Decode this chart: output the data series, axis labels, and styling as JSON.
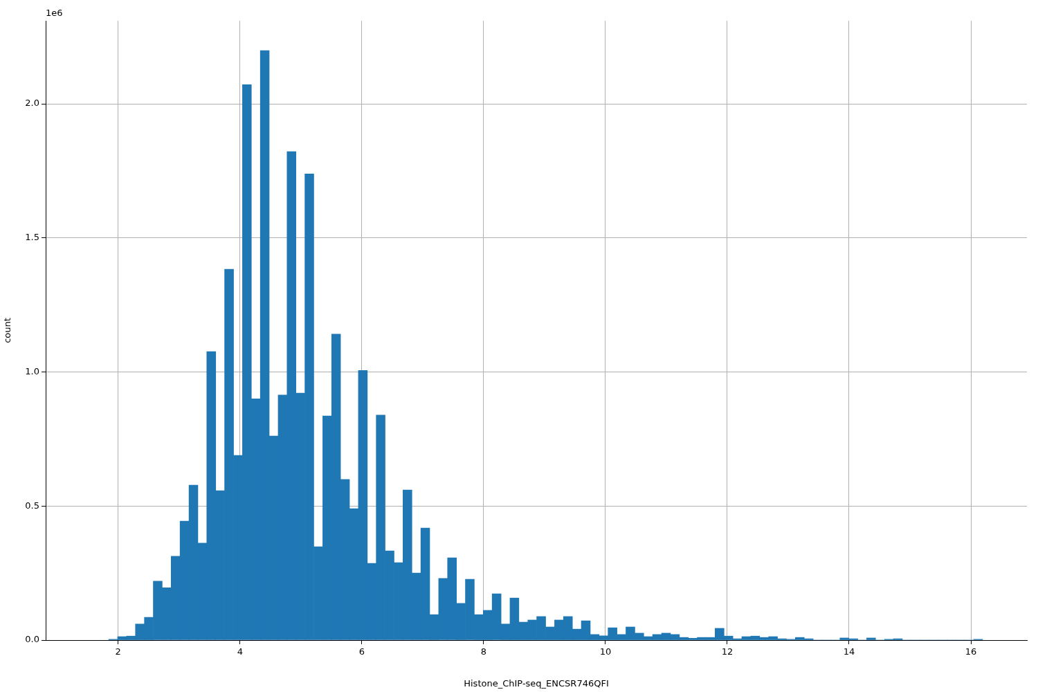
{
  "chart_data": {
    "type": "histogram",
    "xlabel": "Histone_ChIP-seq_ENCSR746QFI",
    "ylabel": "count",
    "annotations": [
      "1e6"
    ],
    "bins": [
      1.845,
      1.991,
      2.138,
      2.284,
      2.431,
      2.577,
      2.723,
      2.87,
      3.016,
      3.163,
      3.309,
      3.455,
      3.602,
      3.748,
      3.895,
      4.041,
      4.187,
      4.334,
      4.48,
      4.627,
      4.773,
      4.919,
      5.066,
      5.212,
      5.359,
      5.505,
      5.651,
      5.798,
      5.944,
      6.091,
      6.237,
      6.383,
      6.53,
      6.676,
      6.823,
      6.969,
      7.115,
      7.262,
      7.408,
      7.555,
      7.701,
      7.847,
      7.994,
      8.14,
      8.287,
      8.433,
      8.579,
      8.726,
      8.872,
      9.019,
      9.165,
      9.311,
      9.458,
      9.604,
      9.751,
      9.897,
      10.043,
      10.19,
      10.336,
      10.483,
      10.629,
      10.775,
      10.922,
      11.068,
      11.215,
      11.361,
      11.507,
      11.654,
      11.8,
      11.947,
      12.093,
      12.239,
      12.386,
      12.532,
      12.679,
      12.825,
      12.971,
      13.118,
      13.264,
      13.411,
      13.557,
      13.703,
      13.85,
      13.996,
      14.143,
      14.289,
      14.435,
      14.582,
      14.728,
      14.875,
      15.021,
      15.167,
      15.314,
      15.46,
      15.607,
      15.753,
      15.899,
      16.046,
      16.192
    ],
    "values": [
      0.003,
      0.013,
      0.015,
      0.06,
      0.085,
      0.22,
      0.195,
      0.313,
      0.444,
      0.578,
      0.362,
      1.076,
      0.557,
      1.383,
      0.689,
      2.072,
      0.9,
      2.199,
      0.761,
      0.914,
      1.822,
      0.921,
      1.739,
      0.348,
      0.836,
      1.141,
      0.599,
      0.49,
      1.006,
      0.286,
      0.839,
      0.333,
      0.289,
      0.56,
      0.25,
      0.418,
      0.095,
      0.23,
      0.307,
      0.137,
      0.227,
      0.095,
      0.111,
      0.173,
      0.06,
      0.157,
      0.067,
      0.075,
      0.088,
      0.049,
      0.075,
      0.088,
      0.041,
      0.072,
      0.021,
      0.016,
      0.046,
      0.021,
      0.049,
      0.026,
      0.013,
      0.021,
      0.026,
      0.021,
      0.01,
      0.007,
      0.01,
      0.01,
      0.044,
      0.015,
      0.005,
      0.013,
      0.015,
      0.01,
      0.013,
      0.005,
      0.003,
      0.01,
      0.005,
      0,
      0,
      0,
      0.008,
      0.005,
      0,
      0.008,
      0,
      0.003,
      0.005,
      0,
      0,
      0,
      0,
      0,
      0,
      0,
      0,
      0.003
    ],
    "color": "#1f77b4",
    "xlim": [
      0.81,
      16.92
    ],
    "ylim": [
      0,
      2.31
    ],
    "xticks": [
      2,
      4,
      6,
      8,
      10,
      12,
      14,
      16
    ],
    "yticks": [
      {
        "value": 0,
        "label": "0.0"
      },
      0.5,
      {
        "value": 1,
        "label": "1.0"
      },
      1.5,
      {
        "value": 2,
        "label": "2.0"
      }
    ],
    "grid": true
  }
}
